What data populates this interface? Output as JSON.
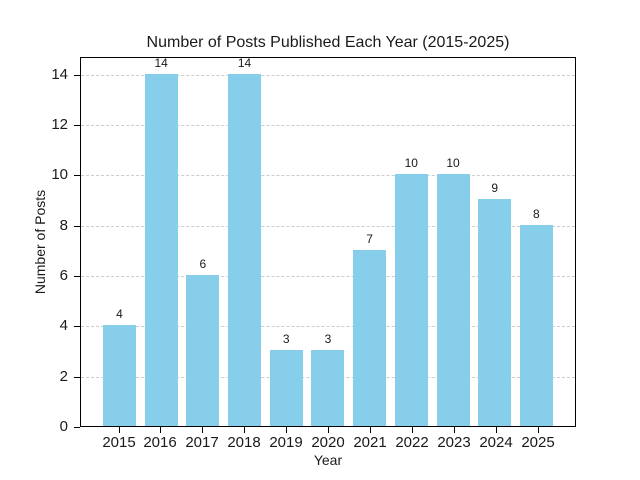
{
  "chart_data": {
    "type": "bar",
    "title": "Number of Posts Published Each Year (2015-2025)",
    "xlabel": "Year",
    "ylabel": "Number of Posts",
    "categories": [
      "2015",
      "2016",
      "2017",
      "2018",
      "2019",
      "2020",
      "2021",
      "2022",
      "2023",
      "2024",
      "2025"
    ],
    "values": [
      4,
      14,
      6,
      14,
      3,
      3,
      7,
      10,
      10,
      9,
      8
    ],
    "bar_value_labels": [
      "4",
      "14",
      "6",
      "14",
      "3",
      "3",
      "7",
      "10",
      "10",
      "9",
      "8"
    ],
    "yticks": [
      0,
      2,
      4,
      6,
      8,
      10,
      12,
      14
    ],
    "ylim": [
      0,
      14.7
    ],
    "grid": {
      "axis": "y",
      "style": "dashed",
      "color": "#cccccc"
    },
    "legend_position": "none",
    "colors": {
      "bar": "#87CEEB",
      "grid": "#cccccc",
      "spine": "#000000",
      "text": "#1a1a1a",
      "background": "#ffffff"
    }
  }
}
